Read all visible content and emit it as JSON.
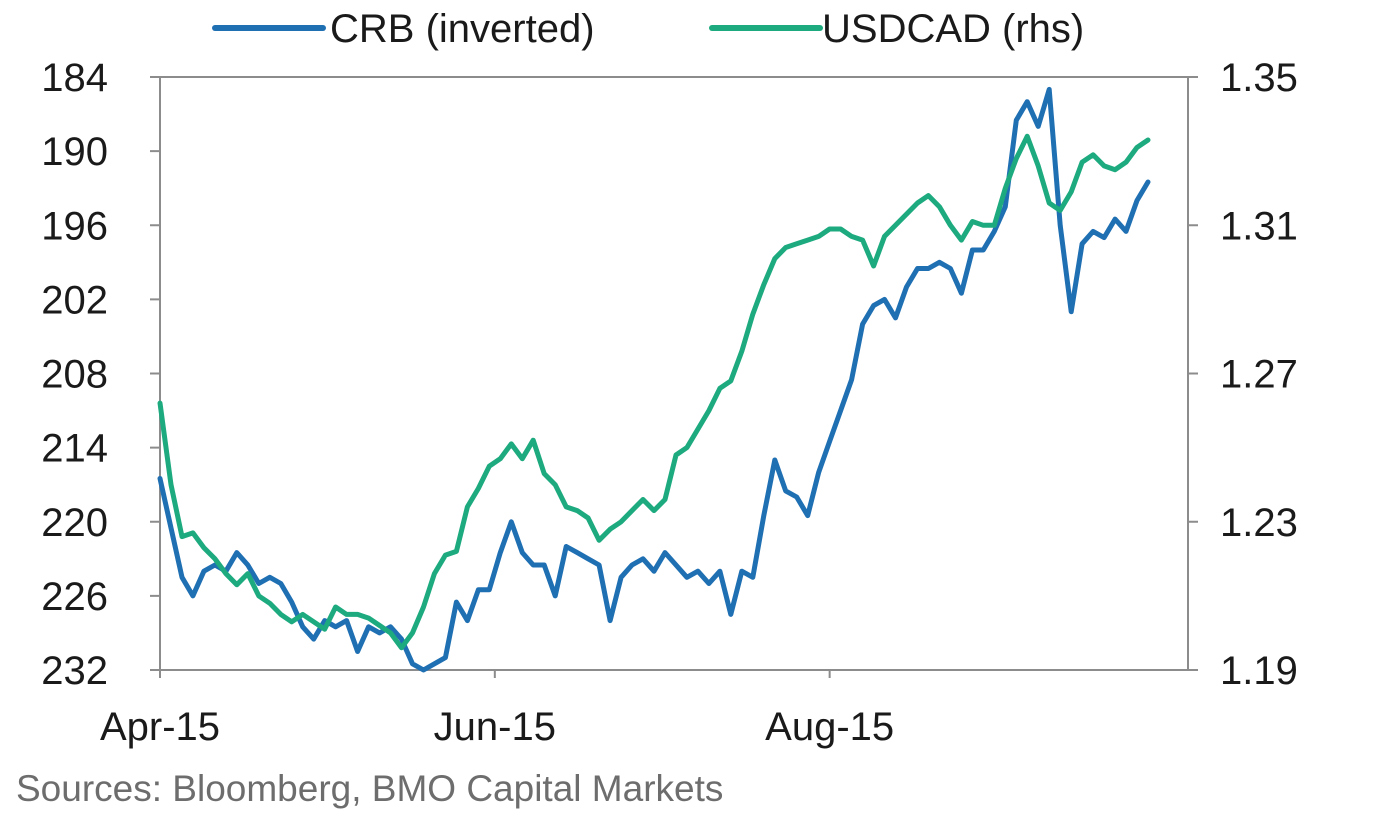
{
  "chart_data": {
    "type": "line",
    "legend_position": "top",
    "grid": false,
    "x_range": [
      "2015-04-01",
      "2015-09-28"
    ],
    "x_tick_labels": [
      {
        "date": "2015-04-01",
        "label": "Apr-15"
      },
      {
        "date": "2015-06-01",
        "label": "Jun-15"
      },
      {
        "date": "2015-08-01",
        "label": "Aug-15"
      }
    ],
    "left_axis": {
      "ylim": [
        184,
        232
      ],
      "inverted": true,
      "ticks": [
        184,
        190,
        196,
        202,
        208,
        214,
        220,
        226,
        232
      ]
    },
    "right_axis": {
      "ylim": [
        1.19,
        1.35
      ],
      "ticks": [
        "1.35",
        "1.31",
        "1.27",
        "1.23",
        "1.19"
      ]
    },
    "series": [
      {
        "name": "CRB (inverted)",
        "axis": "left",
        "color": "#1f6fb3",
        "points": [
          [
            "2015-04-01",
            216.5
          ],
          [
            "2015-04-03",
            220.5
          ],
          [
            "2015-04-05",
            224.5
          ],
          [
            "2015-04-07",
            226.0
          ],
          [
            "2015-04-09",
            224.0
          ],
          [
            "2015-04-11",
            223.5
          ],
          [
            "2015-04-13",
            224.0
          ],
          [
            "2015-04-15",
            222.5
          ],
          [
            "2015-04-17",
            223.5
          ],
          [
            "2015-04-19",
            225.0
          ],
          [
            "2015-04-21",
            224.5
          ],
          [
            "2015-04-23",
            225.0
          ],
          [
            "2015-04-25",
            226.5
          ],
          [
            "2015-04-27",
            228.5
          ],
          [
            "2015-04-29",
            229.5
          ],
          [
            "2015-05-01",
            228.0
          ],
          [
            "2015-05-03",
            228.5
          ],
          [
            "2015-05-05",
            228.0
          ],
          [
            "2015-05-07",
            230.5
          ],
          [
            "2015-05-09",
            228.5
          ],
          [
            "2015-05-11",
            229.0
          ],
          [
            "2015-05-13",
            228.5
          ],
          [
            "2015-05-15",
            229.5
          ],
          [
            "2015-05-17",
            231.5
          ],
          [
            "2015-05-19",
            232.0
          ],
          [
            "2015-05-21",
            231.5
          ],
          [
            "2015-05-23",
            231.0
          ],
          [
            "2015-05-25",
            226.5
          ],
          [
            "2015-05-27",
            228.0
          ],
          [
            "2015-05-29",
            225.5
          ],
          [
            "2015-05-31",
            225.5
          ],
          [
            "2015-06-02",
            222.5
          ],
          [
            "2015-06-04",
            220.0
          ],
          [
            "2015-06-06",
            222.5
          ],
          [
            "2015-06-08",
            223.5
          ],
          [
            "2015-06-10",
            223.5
          ],
          [
            "2015-06-12",
            226.0
          ],
          [
            "2015-06-14",
            222.0
          ],
          [
            "2015-06-16",
            222.5
          ],
          [
            "2015-06-18",
            223.0
          ],
          [
            "2015-06-20",
            223.5
          ],
          [
            "2015-06-22",
            228.0
          ],
          [
            "2015-06-24",
            224.5
          ],
          [
            "2015-06-26",
            223.5
          ],
          [
            "2015-06-28",
            223.0
          ],
          [
            "2015-06-30",
            224.0
          ],
          [
            "2015-07-02",
            222.5
          ],
          [
            "2015-07-04",
            223.5
          ],
          [
            "2015-07-06",
            224.5
          ],
          [
            "2015-07-08",
            224.0
          ],
          [
            "2015-07-10",
            225.0
          ],
          [
            "2015-07-12",
            224.0
          ],
          [
            "2015-07-14",
            227.5
          ],
          [
            "2015-07-16",
            224.0
          ],
          [
            "2015-07-18",
            224.5
          ],
          [
            "2015-07-20",
            219.5
          ],
          [
            "2015-07-22",
            215.0
          ],
          [
            "2015-07-24",
            217.5
          ],
          [
            "2015-07-26",
            218.0
          ],
          [
            "2015-07-28",
            219.5
          ],
          [
            "2015-07-30",
            216.0
          ],
          [
            "2015-08-01",
            213.5
          ],
          [
            "2015-08-03",
            211.0
          ],
          [
            "2015-08-05",
            208.5
          ],
          [
            "2015-08-07",
            204.0
          ],
          [
            "2015-08-09",
            202.5
          ],
          [
            "2015-08-11",
            202.0
          ],
          [
            "2015-08-13",
            203.5
          ],
          [
            "2015-08-15",
            201.0
          ],
          [
            "2015-08-17",
            199.5
          ],
          [
            "2015-08-19",
            199.5
          ],
          [
            "2015-08-21",
            199.0
          ],
          [
            "2015-08-23",
            199.5
          ],
          [
            "2015-08-25",
            201.5
          ],
          [
            "2015-08-27",
            198.0
          ],
          [
            "2015-08-29",
            198.0
          ],
          [
            "2015-08-31",
            196.5
          ],
          [
            "2015-09-02",
            194.5
          ],
          [
            "2015-09-04",
            187.5
          ],
          [
            "2015-09-06",
            186.0
          ],
          [
            "2015-09-08",
            188.0
          ],
          [
            "2015-09-10",
            185.0
          ],
          [
            "2015-09-12",
            196.0
          ],
          [
            "2015-09-14",
            203.0
          ],
          [
            "2015-09-16",
            197.5
          ],
          [
            "2015-09-18",
            196.5
          ],
          [
            "2015-09-20",
            197.0
          ],
          [
            "2015-09-22",
            195.5
          ],
          [
            "2015-09-24",
            196.5
          ],
          [
            "2015-09-26",
            194.0
          ],
          [
            "2015-09-28",
            192.5
          ]
        ]
      },
      {
        "name": "USDCAD (rhs)",
        "axis": "right",
        "color": "#1daa7e",
        "points": [
          [
            "2015-04-01",
            1.262
          ],
          [
            "2015-04-03",
            1.24
          ],
          [
            "2015-04-05",
            1.226
          ],
          [
            "2015-04-07",
            1.227
          ],
          [
            "2015-04-09",
            1.223
          ],
          [
            "2015-04-11",
            1.22
          ],
          [
            "2015-04-13",
            1.216
          ],
          [
            "2015-04-15",
            1.213
          ],
          [
            "2015-04-17",
            1.216
          ],
          [
            "2015-04-19",
            1.21
          ],
          [
            "2015-04-21",
            1.208
          ],
          [
            "2015-04-23",
            1.205
          ],
          [
            "2015-04-25",
            1.203
          ],
          [
            "2015-04-27",
            1.205
          ],
          [
            "2015-04-29",
            1.203
          ],
          [
            "2015-05-01",
            1.201
          ],
          [
            "2015-05-03",
            1.207
          ],
          [
            "2015-05-05",
            1.205
          ],
          [
            "2015-05-07",
            1.205
          ],
          [
            "2015-05-09",
            1.204
          ],
          [
            "2015-05-11",
            1.202
          ],
          [
            "2015-05-13",
            1.2
          ],
          [
            "2015-05-15",
            1.196
          ],
          [
            "2015-05-17",
            1.2
          ],
          [
            "2015-05-19",
            1.207
          ],
          [
            "2015-05-21",
            1.216
          ],
          [
            "2015-05-23",
            1.221
          ],
          [
            "2015-05-25",
            1.222
          ],
          [
            "2015-05-27",
            1.234
          ],
          [
            "2015-05-29",
            1.239
          ],
          [
            "2015-05-31",
            1.245
          ],
          [
            "2015-06-02",
            1.247
          ],
          [
            "2015-06-04",
            1.251
          ],
          [
            "2015-06-06",
            1.247
          ],
          [
            "2015-06-08",
            1.252
          ],
          [
            "2015-06-10",
            1.243
          ],
          [
            "2015-06-12",
            1.24
          ],
          [
            "2015-06-14",
            1.234
          ],
          [
            "2015-06-16",
            1.233
          ],
          [
            "2015-06-18",
            1.231
          ],
          [
            "2015-06-20",
            1.225
          ],
          [
            "2015-06-22",
            1.228
          ],
          [
            "2015-06-24",
            1.23
          ],
          [
            "2015-06-26",
            1.233
          ],
          [
            "2015-06-28",
            1.236
          ],
          [
            "2015-06-30",
            1.233
          ],
          [
            "2015-07-02",
            1.236
          ],
          [
            "2015-07-04",
            1.248
          ],
          [
            "2015-07-06",
            1.25
          ],
          [
            "2015-07-08",
            1.255
          ],
          [
            "2015-07-10",
            1.26
          ],
          [
            "2015-07-12",
            1.266
          ],
          [
            "2015-07-14",
            1.268
          ],
          [
            "2015-07-16",
            1.276
          ],
          [
            "2015-07-18",
            1.286
          ],
          [
            "2015-07-20",
            1.294
          ],
          [
            "2015-07-22",
            1.301
          ],
          [
            "2015-07-24",
            1.304
          ],
          [
            "2015-07-26",
            1.305
          ],
          [
            "2015-07-28",
            1.306
          ],
          [
            "2015-07-30",
            1.307
          ],
          [
            "2015-08-01",
            1.309
          ],
          [
            "2015-08-03",
            1.309
          ],
          [
            "2015-08-05",
            1.307
          ],
          [
            "2015-08-07",
            1.306
          ],
          [
            "2015-08-09",
            1.299
          ],
          [
            "2015-08-11",
            1.307
          ],
          [
            "2015-08-13",
            1.31
          ],
          [
            "2015-08-15",
            1.313
          ],
          [
            "2015-08-17",
            1.316
          ],
          [
            "2015-08-19",
            1.318
          ],
          [
            "2015-08-21",
            1.315
          ],
          [
            "2015-08-23",
            1.31
          ],
          [
            "2015-08-25",
            1.306
          ],
          [
            "2015-08-27",
            1.311
          ],
          [
            "2015-08-29",
            1.31
          ],
          [
            "2015-08-31",
            1.31
          ],
          [
            "2015-09-02",
            1.32
          ],
          [
            "2015-09-04",
            1.328
          ],
          [
            "2015-09-06",
            1.334
          ],
          [
            "2015-09-08",
            1.326
          ],
          [
            "2015-09-10",
            1.316
          ],
          [
            "2015-09-12",
            1.314
          ],
          [
            "2015-09-14",
            1.319
          ],
          [
            "2015-09-16",
            1.327
          ],
          [
            "2015-09-18",
            1.329
          ],
          [
            "2015-09-20",
            1.326
          ],
          [
            "2015-09-22",
            1.325
          ],
          [
            "2015-09-24",
            1.327
          ],
          [
            "2015-09-26",
            1.331
          ],
          [
            "2015-09-28",
            1.333
          ]
        ]
      }
    ]
  },
  "source_note": "Sources: Bloomberg, BMO Capital Markets"
}
